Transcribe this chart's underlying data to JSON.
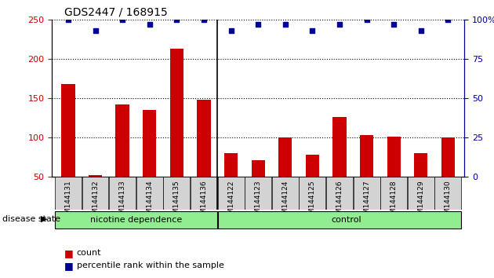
{
  "title": "GDS2447 / 168915",
  "samples": [
    "GSM144131",
    "GSM144132",
    "GSM144133",
    "GSM144134",
    "GSM144135",
    "GSM144136",
    "GSM144122",
    "GSM144123",
    "GSM144124",
    "GSM144125",
    "GSM144126",
    "GSM144127",
    "GSM144128",
    "GSM144129",
    "GSM144130"
  ],
  "counts": [
    168,
    52,
    142,
    135,
    213,
    148,
    80,
    71,
    100,
    78,
    126,
    103,
    101,
    80,
    100
  ],
  "percentile_ranks": [
    100,
    93,
    100,
    97,
    100,
    100,
    93,
    97,
    97,
    93,
    97,
    100,
    97,
    93,
    100
  ],
  "ylim_left": [
    50,
    250
  ],
  "ylim_right": [
    0,
    100
  ],
  "yticks_left": [
    50,
    100,
    150,
    200,
    250
  ],
  "yticks_right": [
    0,
    25,
    50,
    75,
    100
  ],
  "ytick_labels_right": [
    "0",
    "25",
    "50",
    "75",
    "100%"
  ],
  "group_divider": 5.5,
  "bar_color": "#CC0000",
  "dot_color": "#000099",
  "legend_count_color": "#CC0000",
  "legend_dot_color": "#000099",
  "disease_state_label": "disease state",
  "nicotine_label": "nicotine dependence",
  "control_label": "control",
  "group_bg": "#90EE90"
}
